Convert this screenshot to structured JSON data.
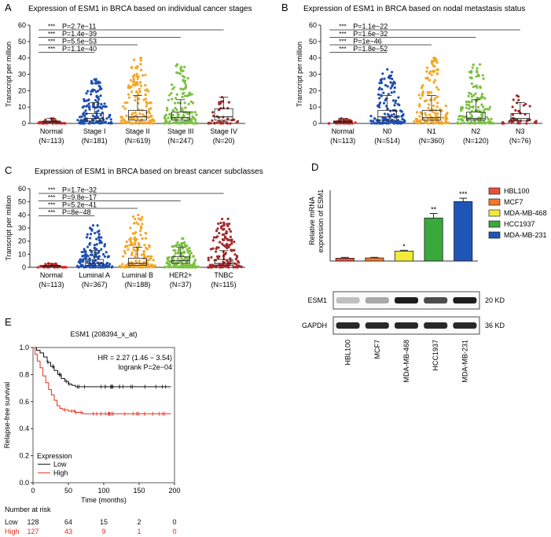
{
  "colors": {
    "red": "#e02020",
    "orange": "#f5a623",
    "green": "#7cc142",
    "darkred": "#a52a2a",
    "blue": "#1f4fb0",
    "yellow": "#f2ea3a",
    "bar_red": "#e8503a",
    "bar_orange": "#f07a2a",
    "bar_green": "#3aa83a",
    "bar_blue": "#1f55b5",
    "km_low": "#111111",
    "km_high": "#e03020"
  },
  "panels": {
    "A": {
      "letter": "A",
      "title": "Expression of ESM1 in BRCA based on individual cancer stages"
    },
    "B": {
      "letter": "B",
      "title": "Expression of ESM1 in BRCA based on nodal metastasis status"
    },
    "C": {
      "letter": "C",
      "title": "Expression of ESM1 in BRCA based on breast cancer subclasses"
    },
    "D": {
      "letter": "D"
    },
    "E": {
      "letter": "E"
    }
  },
  "chart_data": [
    {
      "panel": "A",
      "type": "scatter",
      "title": "Expression of ESM1 in BRCA based on individual cancer stages",
      "ylabel": "Transcript per million",
      "ylim": [
        0,
        60
      ],
      "yticks": [
        0,
        10,
        20,
        30,
        40,
        50,
        60
      ],
      "groups": [
        {
          "label": "Normal",
          "n": "(N=113)",
          "median": 1.0,
          "q1": 0.5,
          "q3": 1.5,
          "max": 3,
          "color": "#e02020"
        },
        {
          "label": "Stage I",
          "n": "(N=181)",
          "median": 3,
          "q1": 1.5,
          "q3": 6,
          "max": 27,
          "color": "#1f4fb0"
        },
        {
          "label": "Stage II",
          "n": "(N=619)",
          "median": 4,
          "q1": 2,
          "q3": 8,
          "max": 40,
          "color": "#f5a623"
        },
        {
          "label": "Stage III",
          "n": "(N=247)",
          "median": 3.5,
          "q1": 2,
          "q3": 7,
          "max": 36,
          "color": "#7cc142"
        },
        {
          "label": "Stage IV",
          "n": "(N=20)",
          "median": 4,
          "q1": 2,
          "q3": 9,
          "max": 16,
          "color": "#a52a2a"
        }
      ],
      "comparisons": [
        {
          "stars": "***",
          "p": "P=2.7e−11",
          "to": "Stage IV"
        },
        {
          "stars": "***",
          "p": "P=1.4e−39",
          "to": "Stage III"
        },
        {
          "stars": "***",
          "p": "P=5.5e−53",
          "to": "Stage II"
        },
        {
          "stars": "***",
          "p": "P=1.1e−40",
          "to": "Stage I"
        }
      ]
    },
    {
      "panel": "B",
      "type": "scatter",
      "title": "Expression of ESM1 in BRCA based on nodal metastasis status",
      "ylabel": "Transcript per million",
      "ylim": [
        0,
        60
      ],
      "yticks": [
        0,
        10,
        20,
        30,
        40,
        50,
        60
      ],
      "groups": [
        {
          "label": "Normal",
          "n": "(N=113)",
          "median": 1.0,
          "q1": 0.5,
          "q3": 1.5,
          "max": 3,
          "color": "#e02020"
        },
        {
          "label": "N0",
          "n": "(N=514)",
          "median": 4,
          "q1": 2,
          "q3": 8,
          "max": 33,
          "color": "#1f4fb0"
        },
        {
          "label": "N1",
          "n": "(N=360)",
          "median": 3.5,
          "q1": 2,
          "q3": 8,
          "max": 40,
          "color": "#f5a623"
        },
        {
          "label": "N2",
          "n": "(N=120)",
          "median": 3,
          "q1": 2,
          "q3": 7,
          "max": 36,
          "color": "#7cc142"
        },
        {
          "label": "N3",
          "n": "(N=76)",
          "median": 3,
          "q1": 1.5,
          "q3": 6,
          "max": 17,
          "color": "#a52a2a"
        }
      ],
      "comparisons": [
        {
          "stars": "***",
          "p": "P=1.1e−22",
          "to": "N3"
        },
        {
          "stars": "***",
          "p": "P=1.6e−32",
          "to": "N2"
        },
        {
          "stars": "***",
          "p": "P=1e−46",
          "to": "N1"
        },
        {
          "stars": "***",
          "p": "P=1.8e−52",
          "to": "N0"
        }
      ]
    },
    {
      "panel": "C",
      "type": "scatter",
      "title": "Expression of ESM1 in BRCA based on breast cancer subclasses",
      "ylabel": "Transcript per million",
      "ylim": [
        0,
        60
      ],
      "yticks": [
        0,
        10,
        20,
        30,
        40,
        50,
        60
      ],
      "groups": [
        {
          "label": "Normal",
          "n": "(N=113)",
          "median": 1.0,
          "q1": 0.5,
          "q3": 1.5,
          "max": 3,
          "color": "#e02020"
        },
        {
          "label": "Luminal A",
          "n": "(N=367)",
          "median": 3,
          "q1": 1.5,
          "q3": 6,
          "max": 32,
          "color": "#1f4fb0"
        },
        {
          "label": "Luminal B",
          "n": "(N=188)",
          "median": 3,
          "q1": 1.5,
          "q3": 7,
          "max": 40,
          "color": "#f5a623"
        },
        {
          "label": "HER2+",
          "n": "(N=37)",
          "median": 5,
          "q1": 3,
          "q3": 8,
          "max": 22,
          "color": "#7cc142"
        },
        {
          "label": "TNBC",
          "n": "(N=115)",
          "median": 3,
          "q1": 1.5,
          "q3": 6,
          "max": 37,
          "color": "#a52a2a"
        }
      ],
      "comparisons": [
        {
          "stars": "***",
          "p": "P=1.7e−32",
          "to": "TNBC"
        },
        {
          "stars": "***",
          "p": "P=9.8e−17",
          "to": "HER2+"
        },
        {
          "stars": "***",
          "p": "P=5.2e−41",
          "to": "Luminal B"
        },
        {
          "stars": "***",
          "p": "P=8e−48",
          "to": "Luminal A"
        }
      ]
    },
    {
      "panel": "D",
      "type": "bar",
      "ylabel": "Relative mRNA expression of ESM1",
      "categories": [
        "HBL100",
        "MCF7",
        "MDA-MB-468",
        "HCC1937",
        "MDA-MB-231"
      ],
      "values": [
        1.0,
        1.1,
        3.5,
        15.2,
        21.0
      ],
      "errors": [
        0.3,
        0.2,
        0.3,
        1.6,
        1.2
      ],
      "stars": [
        "",
        "",
        "*",
        "**",
        "***"
      ],
      "colors": [
        "#e8503a",
        "#f07a2a",
        "#f2ea3a",
        "#3aa83a",
        "#1f55b5"
      ],
      "ylim": [
        0,
        25
      ],
      "legend": [
        "HBL100",
        "MCF7",
        "MDA-MB-468",
        "HCC1937",
        "MDA-MB-231"
      ],
      "blot": {
        "rows": [
          {
            "label": "ESM1",
            "kd": "20 KD"
          },
          {
            "label": "GAPDH",
            "kd": "36 KD"
          }
        ]
      }
    },
    {
      "panel": "E",
      "type": "line",
      "title": "ESM1 (208394_x_at)",
      "xlabel": "Time (months)",
      "ylabel": "Relapse-free survival",
      "xlim": [
        0,
        200
      ],
      "ylim": [
        0,
        1
      ],
      "xticks": [
        0,
        50,
        100,
        150,
        200
      ],
      "yticks": [
        0.0,
        0.2,
        0.4,
        0.6,
        0.8,
        1.0
      ],
      "annotation_hr": "HR = 2.27 (1.46 − 3.54)",
      "annotation_p": "logrank P=2e−04",
      "legend_title": "Expression",
      "series": [
        {
          "name": "Low",
          "color": "#111111",
          "x": [
            0,
            5,
            10,
            15,
            20,
            25,
            30,
            35,
            40,
            45,
            50,
            55,
            60,
            65,
            195
          ],
          "y": [
            1.0,
            0.98,
            0.96,
            0.93,
            0.89,
            0.86,
            0.83,
            0.8,
            0.77,
            0.75,
            0.73,
            0.72,
            0.71,
            0.71,
            0.71
          ]
        },
        {
          "name": "High",
          "color": "#e03020",
          "x": [
            0,
            3,
            6,
            10,
            14,
            18,
            22,
            26,
            30,
            34,
            38,
            42,
            50,
            60,
            70,
            195
          ],
          "y": [
            1.0,
            0.95,
            0.9,
            0.85,
            0.79,
            0.74,
            0.69,
            0.65,
            0.61,
            0.57,
            0.55,
            0.54,
            0.53,
            0.52,
            0.51,
            0.51
          ]
        }
      ],
      "risk_table": {
        "title": "Number at risk",
        "rows": [
          {
            "name": "Low",
            "values": [
              "128",
              "64",
              "15",
              "2",
              "0"
            ]
          },
          {
            "name": "High",
            "values": [
              "127",
              "43",
              "9",
              "1",
              "0"
            ]
          }
        ]
      }
    }
  ]
}
